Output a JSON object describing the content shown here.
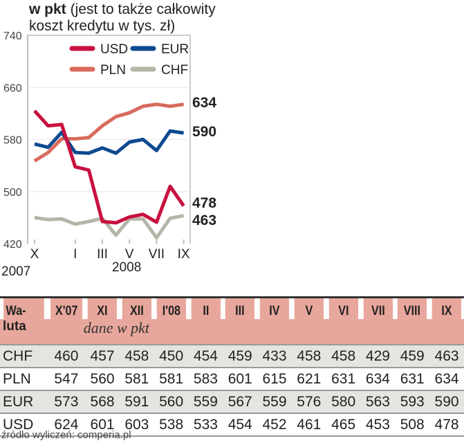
{
  "chart_data": {
    "type": "line",
    "title": "w pkt",
    "subtitle": "(jest to także całkowity koszt kredytu w tys. zł)",
    "x": [
      "X'07",
      "XI",
      "XII",
      "I'08",
      "II",
      "III",
      "IV",
      "V",
      "VI",
      "VII",
      "VIII",
      "IX"
    ],
    "x_tick_labels": [
      "X",
      "I",
      "III",
      "V",
      "VII",
      "IX"
    ],
    "year_labels": [
      "2007",
      "2008"
    ],
    "ylim": [
      420,
      740
    ],
    "y_ticks": [
      740,
      660,
      580,
      500,
      420
    ],
    "legend_placement": "top",
    "series": [
      {
        "name": "USD",
        "color": "#c8103e",
        "values": [
          624,
          601,
          603,
          538,
          533,
          454,
          452,
          461,
          465,
          453,
          508,
          478
        ],
        "end_label": "478"
      },
      {
        "name": "EUR",
        "color": "#0d4a8f",
        "values": [
          573,
          568,
          591,
          560,
          559,
          567,
          559,
          576,
          580,
          563,
          593,
          590
        ],
        "end_label": "590"
      },
      {
        "name": "PLN",
        "color": "#d96b5c",
        "values": [
          547,
          560,
          581,
          581,
          583,
          601,
          615,
          621,
          631,
          634,
          631,
          634
        ],
        "end_label": "634"
      },
      {
        "name": "CHF",
        "color": "#b5b5a8",
        "values": [
          460,
          457,
          458,
          450,
          454,
          459,
          433,
          458,
          458,
          429,
          459,
          463
        ],
        "end_label": "463"
      }
    ]
  },
  "table": {
    "header_col1_line1": "Wa-",
    "header_col1_line2": "luta",
    "months": [
      "X'07",
      "XI",
      "XII",
      "I'08",
      "II",
      "III",
      "IV",
      "V",
      "VI",
      "VII",
      "VIII",
      "IX"
    ],
    "subtitle": "dane w pkt",
    "rows": [
      {
        "cur": "CHF",
        "vals": [
          460,
          457,
          458,
          450,
          454,
          459,
          433,
          458,
          458,
          429,
          459,
          463
        ]
      },
      {
        "cur": "PLN",
        "vals": [
          547,
          560,
          581,
          581,
          583,
          601,
          615,
          621,
          631,
          634,
          631,
          634
        ]
      },
      {
        "cur": "EUR",
        "vals": [
          573,
          568,
          591,
          560,
          559,
          567,
          559,
          576,
          580,
          563,
          593,
          590
        ]
      },
      {
        "cur": "USD",
        "vals": [
          624,
          601,
          603,
          538,
          533,
          454,
          452,
          461,
          465,
          453,
          508,
          478
        ]
      }
    ]
  },
  "source": "źródło wyliczeń: comperia.pl"
}
